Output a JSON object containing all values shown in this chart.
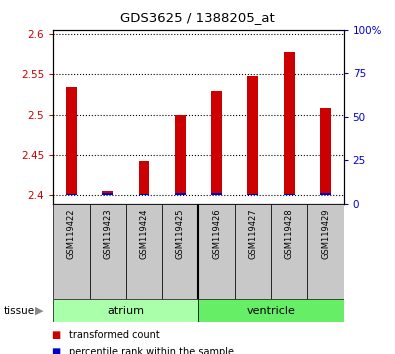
{
  "title": "GDS3625 / 1388205_at",
  "samples": [
    "GSM119422",
    "GSM119423",
    "GSM119424",
    "GSM119425",
    "GSM119426",
    "GSM119427",
    "GSM119428",
    "GSM119429"
  ],
  "transformed_count": [
    2.535,
    2.405,
    2.443,
    2.5,
    2.53,
    2.548,
    2.578,
    2.508
  ],
  "percentile_rank_pct": [
    2,
    3,
    2,
    3,
    3,
    2,
    2,
    3
  ],
  "ylim_left": [
    2.39,
    2.605
  ],
  "ylim_right": [
    0,
    100
  ],
  "yticks_left": [
    2.4,
    2.45,
    2.5,
    2.55,
    2.6
  ],
  "yticks_left_labels": [
    "2.4",
    "2.45",
    "2.5",
    "2.55",
    "2.6"
  ],
  "yticks_right": [
    0,
    25,
    50,
    75,
    100
  ],
  "yticks_right_labels": [
    "0",
    "25",
    "50",
    "75",
    "100%"
  ],
  "bar_bottom": 2.4,
  "tissue_groups": [
    {
      "label": "atrium",
      "start": 0,
      "end": 4,
      "color": "#AAFFAA"
    },
    {
      "label": "ventricle",
      "start": 4,
      "end": 8,
      "color": "#66EE66"
    }
  ],
  "red_color": "#CC0000",
  "blue_color": "#0000CC",
  "gray_bg": "#C8C8C8",
  "plot_bg": "#FFFFFF",
  "tissue_arrow_color": "#888888",
  "tissue_label": "tissue",
  "legend_items": [
    {
      "color": "#CC0000",
      "label": "transformed count"
    },
    {
      "color": "#0000CC",
      "label": "percentile rank within the sample"
    }
  ]
}
